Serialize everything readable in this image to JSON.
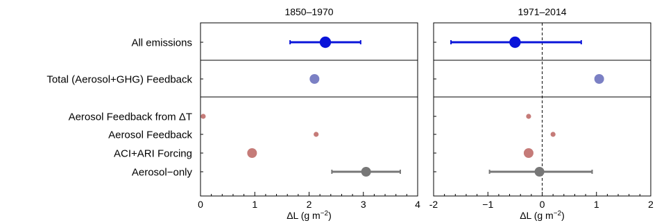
{
  "chart_data": [
    {
      "type": "scatter",
      "title": "1850–1970",
      "xlabel": "ΔL (g m",
      "xlabel_sup": "−2",
      "xlabel_close": ")",
      "xlim": [
        0,
        4
      ],
      "xticks": [
        0,
        1,
        2,
        3,
        4
      ],
      "xtick_labels": [
        "0",
        "1",
        "2",
        "3",
        "4"
      ],
      "zero_line": false,
      "points": [
        {
          "label": "All emissions",
          "value": 2.3,
          "err_low": 1.65,
          "err_high": 2.95,
          "color": "#0a14d9",
          "size": "large"
        },
        {
          "label": "Total (Aerosol+GHG) Feedback",
          "value": 2.1,
          "color": "#7b80c4",
          "size": "medium"
        },
        {
          "label": "Aerosol Feedback from ΔT",
          "value": 0.05,
          "color": "#c57b78",
          "size": "small"
        },
        {
          "label": "Aerosol Feedback",
          "value": 2.13,
          "color": "#c57b78",
          "size": "small"
        },
        {
          "label": "ACI+ARI Forcing",
          "value": 0.95,
          "color": "#c57b78",
          "size": "medium"
        },
        {
          "label": "Aerosol−only",
          "value": 3.05,
          "err_low": 2.42,
          "err_high": 3.68,
          "color": "#777777",
          "size": "medium"
        }
      ]
    },
    {
      "type": "scatter",
      "title": "1971–2014",
      "xlabel": "ΔL (g m",
      "xlabel_sup": "−2",
      "xlabel_close": ")",
      "xlim": [
        -2,
        2
      ],
      "xticks": [
        -2,
        -1,
        0,
        1,
        2
      ],
      "xtick_labels": [
        "-2",
        "−1",
        "0",
        "1",
        "2"
      ],
      "zero_line": true,
      "points": [
        {
          "label": "All emissions",
          "value": -0.5,
          "err_low": -1.68,
          "err_high": 0.72,
          "color": "#0a14d9",
          "size": "large"
        },
        {
          "label": "Total (Aerosol+GHG) Feedback",
          "value": 1.05,
          "color": "#7b80c4",
          "size": "medium"
        },
        {
          "label": "Aerosol Feedback from ΔT",
          "value": -0.25,
          "color": "#c57b78",
          "size": "small"
        },
        {
          "label": "Aerosol Feedback",
          "value": 0.2,
          "color": "#c57b78",
          "size": "small"
        },
        {
          "label": "ACI+ARI Forcing",
          "value": -0.25,
          "color": "#c57b78",
          "size": "medium"
        },
        {
          "label": "Aerosol−only",
          "value": -0.05,
          "err_low": -0.97,
          "err_high": 0.92,
          "color": "#777777",
          "size": "medium"
        }
      ]
    }
  ],
  "row_labels": [
    "All emissions",
    "Total (Aerosol+GHG) Feedback",
    "Aerosol Feedback from ΔT",
    "Aerosol Feedback",
    "ACI+ARI Forcing",
    "Aerosol−only"
  ]
}
